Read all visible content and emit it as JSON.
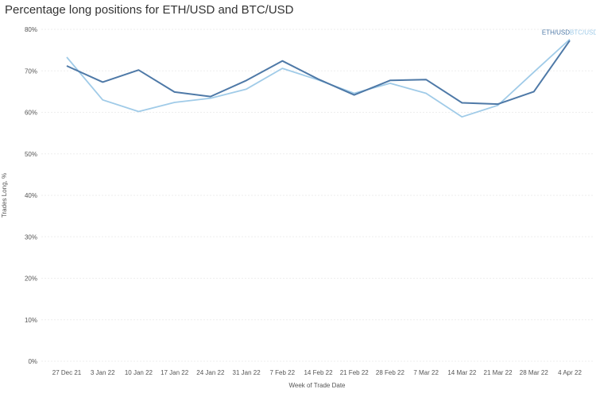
{
  "chart_data": {
    "type": "line",
    "title": "Percentage long positions for ETH/USD and BTC/USD",
    "xlabel": "Week of Trade Date",
    "ylabel": "Trades Long, %",
    "ylim": [
      0,
      80
    ],
    "yticks": [
      "0%",
      "10%",
      "20%",
      "30%",
      "40%",
      "50%",
      "60%",
      "70%",
      "80%"
    ],
    "categories": [
      "27 Dec 21",
      "3 Jan 22",
      "10 Jan 22",
      "17 Jan 22",
      "24 Jan 22",
      "31 Jan 22",
      "7 Feb 22",
      "14 Feb 22",
      "21 Feb 22",
      "28 Feb 22",
      "7 Mar 22",
      "14 Mar 22",
      "21 Mar 22",
      "28 Mar 22",
      "4 Apr 22"
    ],
    "grid": true,
    "series": [
      {
        "name": "ETH/USD",
        "color": "#4e79a7",
        "values": [
          71.2,
          67.3,
          70.2,
          64.9,
          63.8,
          67.7,
          72.4,
          68.0,
          64.2,
          67.7,
          67.9,
          62.3,
          62.0,
          65.0,
          77.3
        ]
      },
      {
        "name": "BTC/USD",
        "color": "#a0cbe8",
        "values": [
          73.3,
          63.0,
          60.2,
          62.4,
          63.4,
          65.6,
          70.6,
          67.8,
          64.6,
          67.0,
          64.6,
          58.9,
          61.7,
          69.7,
          77.6
        ]
      }
    ]
  }
}
